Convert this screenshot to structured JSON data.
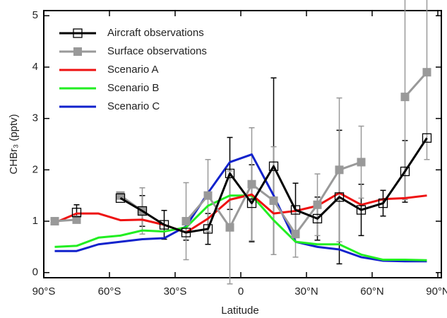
{
  "chart_data": {
    "type": "line",
    "xlabel": "Latitude",
    "ylabel": "CHBr₃ (pptv)",
    "x": [
      -85,
      -75,
      -65,
      -55,
      -45,
      -35,
      -25,
      -15,
      -5,
      5,
      15,
      25,
      35,
      45,
      55,
      65,
      75,
      85
    ],
    "xlim": [
      -90,
      90
    ],
    "xticks": [
      {
        "value": -90,
        "label": "90°S"
      },
      {
        "value": -60,
        "label": "60°S"
      },
      {
        "value": -30,
        "label": "30°S"
      },
      {
        "value": 0,
        "label": "0"
      },
      {
        "value": 30,
        "label": "30°N"
      },
      {
        "value": 60,
        "label": "60°N"
      },
      {
        "value": 90,
        "label": "90°N"
      }
    ],
    "ylim": [
      -0.1,
      5.1
    ],
    "yticks": [
      0,
      1,
      2,
      3,
      4,
      5
    ],
    "legend": "upper left",
    "series": [
      {
        "name": "Aircraft observations",
        "color": "#000000",
        "marker": "open-square",
        "values": [
          null,
          1.17,
          null,
          1.45,
          1.2,
          0.93,
          0.78,
          0.85,
          1.93,
          1.35,
          2.07,
          1.22,
          1.05,
          1.47,
          1.22,
          1.35,
          1.97,
          2.62
        ],
        "errors": [
          null,
          0.15,
          null,
          null,
          0.3,
          0.28,
          0.15,
          0.3,
          0.7,
          0.75,
          1.72,
          0.52,
          0.42,
          1.3,
          0.5,
          0.25,
          0.6,
          null
        ]
      },
      {
        "name": "Surface observations",
        "color": "#999999",
        "marker": "filled-square",
        "values": [
          1.0,
          1.03,
          null,
          1.5,
          1.2,
          null,
          1.0,
          1.5,
          0.88,
          1.72,
          1.4,
          0.75,
          1.32,
          2.0,
          2.15,
          null,
          3.42,
          3.9
        ],
        "errors": [
          null,
          null,
          null,
          null,
          0.45,
          null,
          0.75,
          0.7,
          1.1,
          1.1,
          1.05,
          0.45,
          0.6,
          1.4,
          0.7,
          null,
          2.0,
          1.7
        ]
      },
      {
        "name": "Scenario A",
        "color": "#ee1111",
        "values": [
          0.97,
          1.15,
          1.15,
          1.02,
          1.03,
          0.93,
          0.78,
          1.05,
          1.42,
          1.52,
          1.15,
          1.2,
          1.3,
          1.55,
          1.32,
          1.43,
          1.45,
          1.5
        ]
      },
      {
        "name": "Scenario B",
        "color": "#22ee22",
        "values": [
          0.5,
          0.52,
          0.68,
          0.72,
          0.82,
          0.8,
          0.88,
          1.3,
          1.5,
          1.5,
          1.02,
          0.6,
          0.55,
          0.55,
          0.35,
          0.25,
          0.25,
          0.24
        ]
      },
      {
        "name": "Scenario C",
        "color": "#1122cc",
        "values": [
          0.42,
          0.42,
          0.55,
          0.6,
          0.65,
          0.67,
          0.9,
          1.55,
          2.15,
          2.3,
          1.5,
          0.6,
          0.5,
          0.45,
          0.3,
          0.23,
          0.22,
          0.22
        ]
      }
    ]
  }
}
